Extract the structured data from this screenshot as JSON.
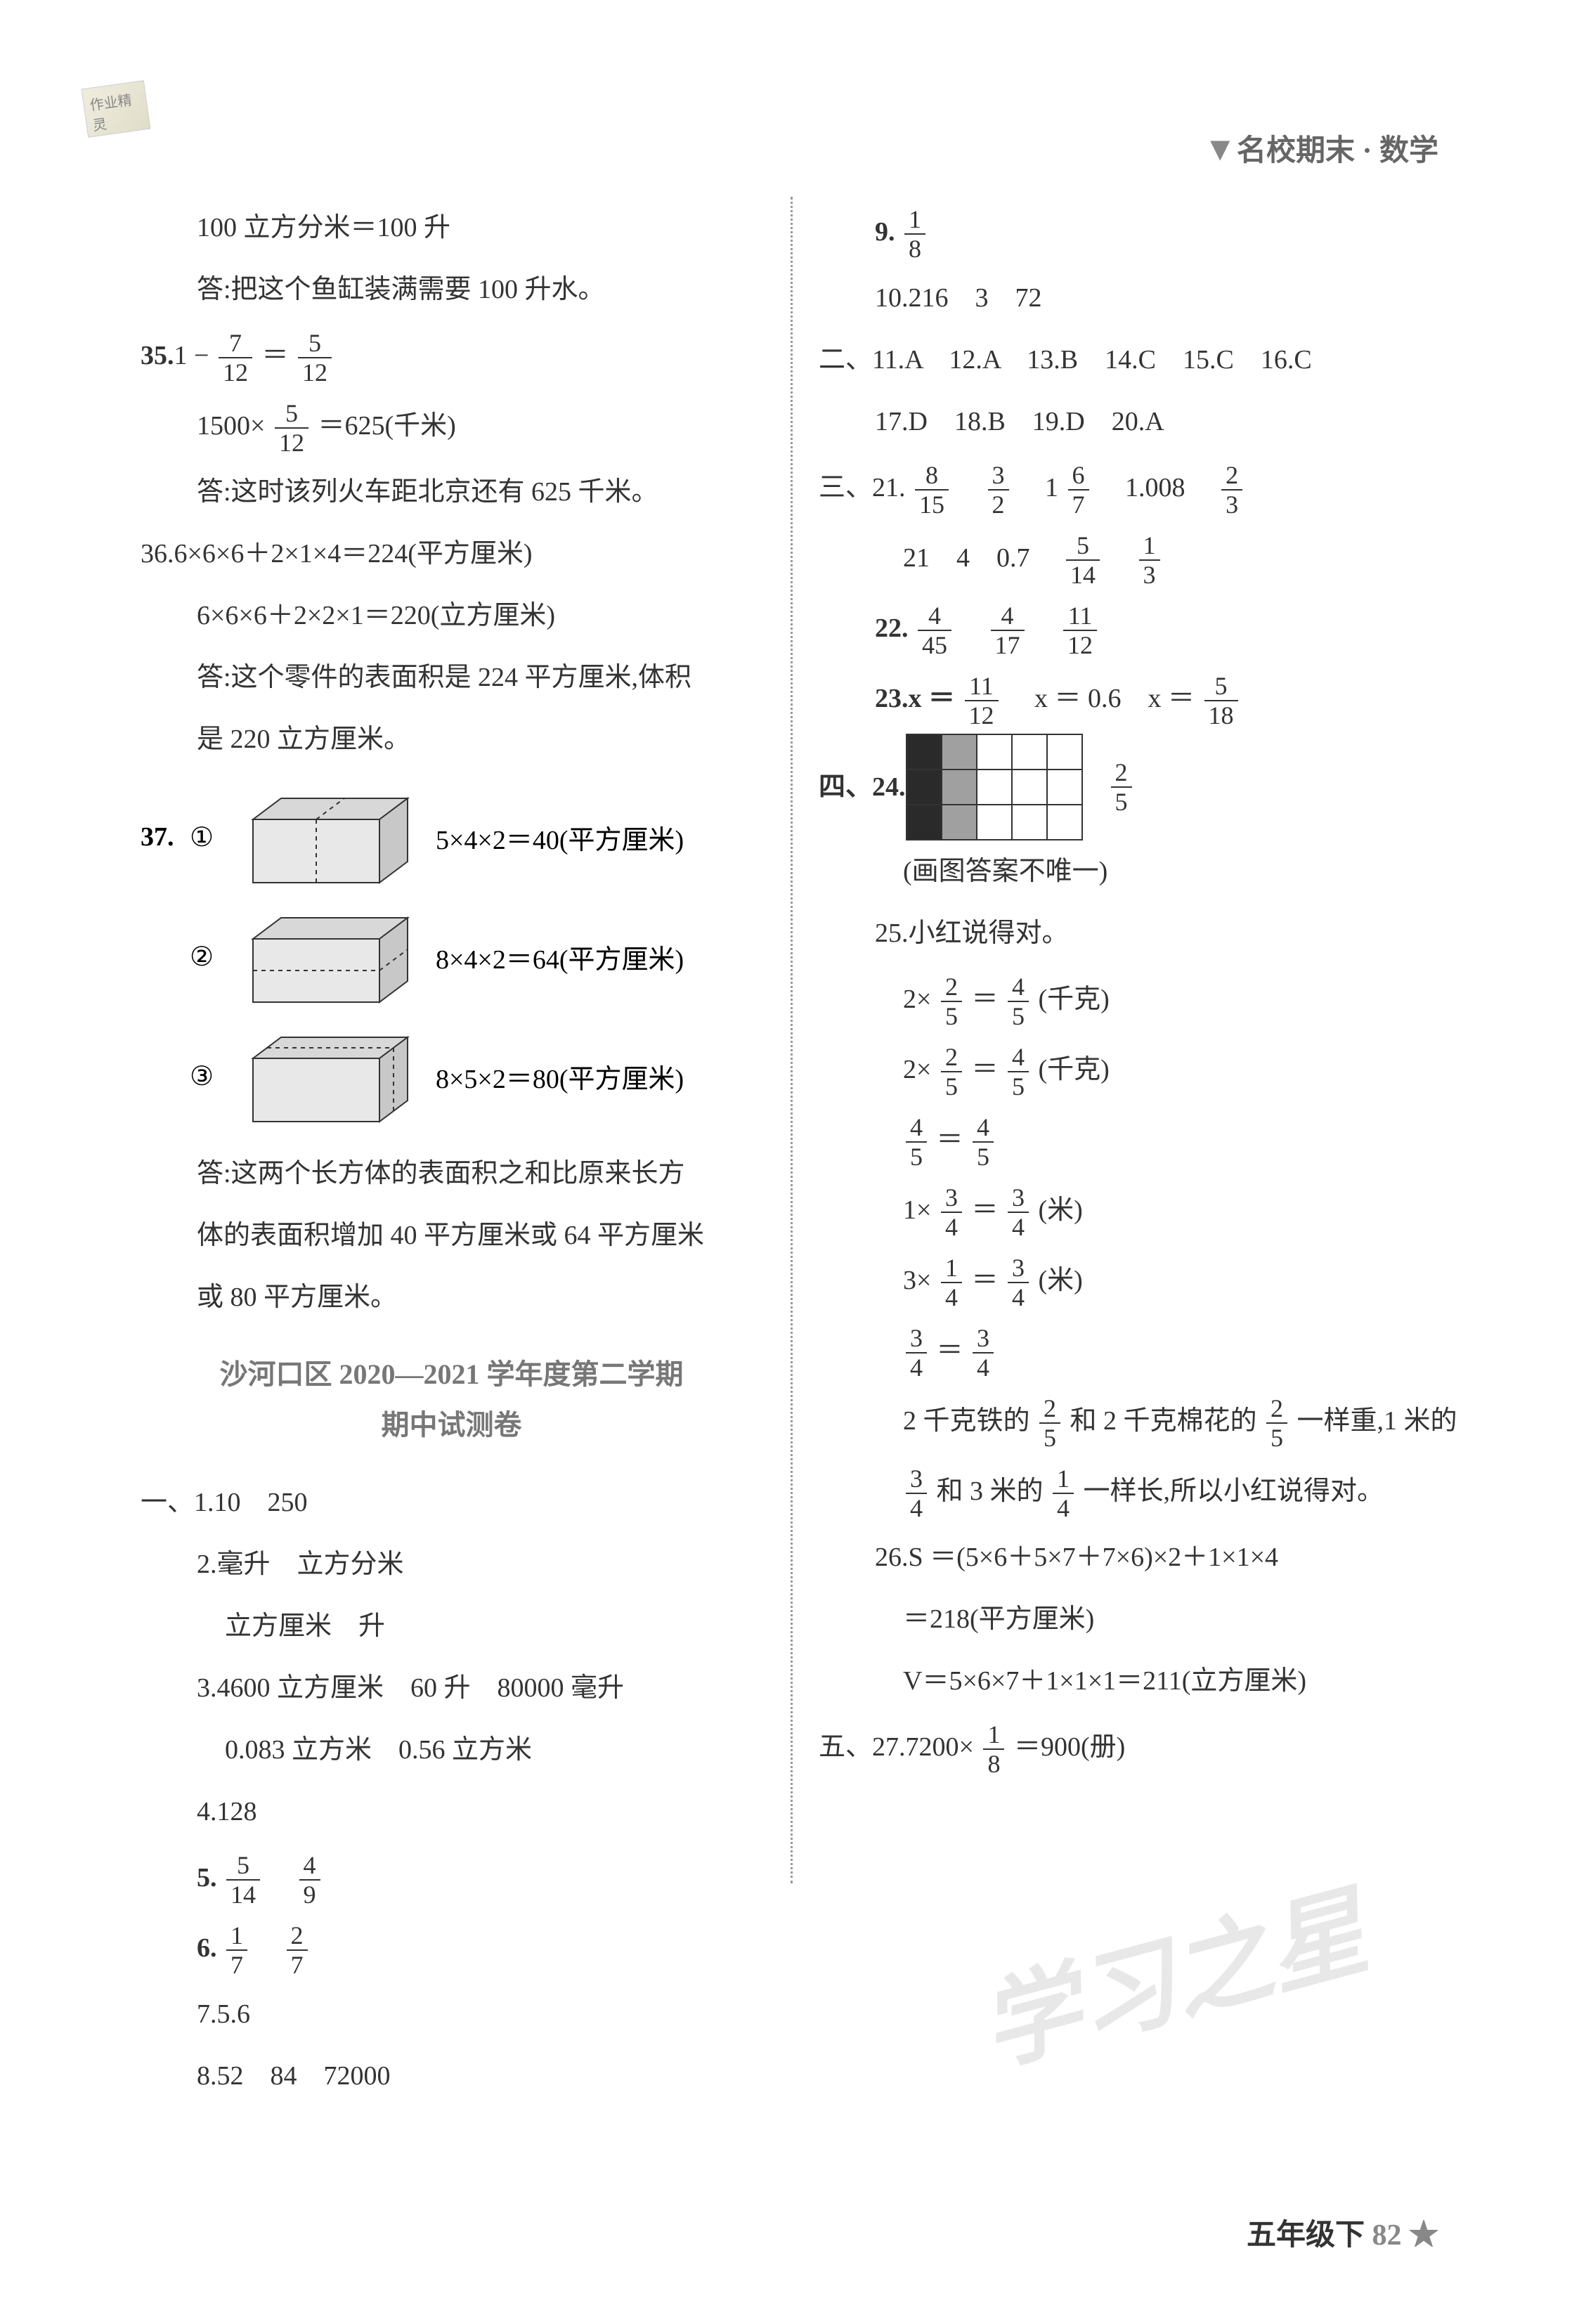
{
  "header": {
    "brand_text": "名校期末 · 数学",
    "corner_tag": "作业精灵"
  },
  "left": {
    "l1": "100 立方分米＝100 升",
    "l2": "答:把这个鱼缸装满需要 100 升水。",
    "q35_prefix": "35.",
    "q35_main": "1 −",
    "q35_f1n": "7",
    "q35_f1d": "12",
    "q35_eq": " ＝ ",
    "q35_f2n": "5",
    "q35_f2d": "12",
    "q35_r2a": "1500×",
    "q35_r2_fn": "5",
    "q35_r2_fd": "12",
    "q35_r2b": "＝625(千米)",
    "q35_ans": "答:这时该列火车距北京还有 625 千米。",
    "q36_l1": "36.6×6×6＋2×1×4＝224(平方厘米)",
    "q36_l2": "6×6×6＋2×2×1＝220(立方厘米)",
    "q36_l3": "答:这个零件的表面积是 224 平方厘米,体积",
    "q36_l4": "是 220 立方厘米。",
    "q37_num": "37.",
    "q37_c1_label": "①",
    "q37_c1_text": "5×4×2＝40(平方厘米)",
    "q37_c2_label": "②",
    "q37_c2_text": "8×4×2＝64(平方厘米)",
    "q37_c3_label": "③",
    "q37_c3_text": "8×5×2＝80(平方厘米)",
    "q37_ans1": "答:这两个长方体的表面积之和比原来长方",
    "q37_ans2": "体的表面积增加 40 平方厘米或 64 平方厘米",
    "q37_ans3": "或 80 平方厘米。",
    "section_title_l1": "沙河口区 2020—2021 学年度第二学期",
    "section_title_l2": "期中试测卷",
    "s1_q1": "一、1.10　250",
    "s1_q2a": "2.毫升　立方分米",
    "s1_q2b": "立方厘米　升",
    "s1_q3a": "3.4600 立方厘米　60 升　80000 毫升",
    "s1_q3b": "0.083 立方米　0.56 立方米",
    "s1_q4": "4.128",
    "s1_q5": "5.",
    "s1_q5_f1n": "5",
    "s1_q5_f1d": "14",
    "s1_q5_f2n": "4",
    "s1_q5_f2d": "9",
    "s1_q6": "6.",
    "s1_q6_f1n": "1",
    "s1_q6_f1d": "7",
    "s1_q6_f2n": "2",
    "s1_q6_f2d": "7",
    "s1_q7": "7.5.6",
    "s1_q8": "8.52　84　72000"
  },
  "right": {
    "q9": "9.",
    "q9_fn": "1",
    "q9_fd": "8",
    "q10": "10.216　3　72",
    "s2": "二、11.A　12.A　13.B　14.C　15.C　16.C",
    "s2b": "17.D　18.B　19.D　20.A",
    "s3_21": "三、21.",
    "s3_21_f1n": "8",
    "s3_21_f1d": "15",
    "s3_21_f2n": "3",
    "s3_21_f2d": "2",
    "s3_21_mix": "　1 ",
    "s3_21_f3n": "6",
    "s3_21_f3d": "7",
    "s3_21_c": "　1.008　",
    "s3_21_f4n": "2",
    "s3_21_f4d": "3",
    "s3_21b_a": "21　4　0.7　",
    "s3_21b_f1n": "5",
    "s3_21b_f1d": "14",
    "s3_21b_f2n": "1",
    "s3_21b_f2d": "3",
    "q22": "22.",
    "q22_f1n": "4",
    "q22_f1d": "45",
    "q22_f2n": "4",
    "q22_f2d": "17",
    "q22_f3n": "11",
    "q22_f3d": "12",
    "q23a": "23.x ＝ ",
    "q23_f1n": "11",
    "q23_f1d": "12",
    "q23b": "　x ＝ 0.6　x ＝ ",
    "q23_f2n": "5",
    "q23_f2d": "18",
    "q24_label": "四、24.",
    "q24_fn": "2",
    "q24_fd": "5",
    "q24_note": "(画图答案不唯一)",
    "grid": {
      "rows": 3,
      "cols": 5,
      "pattern": [
        [
          "black",
          "gray",
          "white",
          "white",
          "white"
        ],
        [
          "black",
          "gray",
          "white",
          "white",
          "white"
        ],
        [
          "black",
          "gray",
          "white",
          "white",
          "white"
        ]
      ]
    },
    "q25_l1": "25.小红说得对。",
    "q25_e1a": "2×",
    "q25_e1_f1n": "2",
    "q25_e1_f1d": "5",
    "q25_e1b": " ＝ ",
    "q25_e1_f2n": "4",
    "q25_e1_f2d": "5",
    "q25_e1c": "(千克)",
    "q25_e3_f1n": "4",
    "q25_e3_f1d": "5",
    "q25_e3_eq": " ＝ ",
    "q25_e3_f2n": "4",
    "q25_e3_f2d": "5",
    "q25_e4a": "1×",
    "q25_e4_f1n": "3",
    "q25_e4_f1d": "4",
    "q25_e4b": " ＝ ",
    "q25_e4_f2n": "3",
    "q25_e4_f2d": "4",
    "q25_e4c": "(米)",
    "q25_e5a": "3×",
    "q25_e5_f1n": "1",
    "q25_e5_f1d": "4",
    "q25_e5b": " ＝ ",
    "q25_e5_f2n": "3",
    "q25_e5_f2d": "4",
    "q25_e5c": "(米)",
    "q25_e6_f1n": "3",
    "q25_e6_f1d": "4",
    "q25_e6_eq": " ＝ ",
    "q25_e6_f2n": "3",
    "q25_e6_f2d": "4",
    "q25_t1a": "2 千克铁的",
    "q25_t1_f1n": "2",
    "q25_t1_f1d": "5",
    "q25_t1b": "和 2 千克棉花的",
    "q25_t1_f2n": "2",
    "q25_t1_f2d": "5",
    "q25_t1c": "一样重,1 米的",
    "q25_t2_f1n": "3",
    "q25_t2_f1d": "4",
    "q25_t2a": "和 3 米的",
    "q25_t2_f2n": "1",
    "q25_t2_f2d": "4",
    "q25_t2b": "一样长,所以小红说得对。",
    "q26_l1": "26.S ＝(5×6＋5×7＋7×6)×2＋1×1×4",
    "q26_l2": "＝218(平方厘米)",
    "q26_l3": "V＝5×6×7＋1×1×1＝211(立方厘米)",
    "q27a": "五、27.7200×",
    "q27_fn": "1",
    "q27_fd": "8",
    "q27b": "＝900(册)"
  },
  "footer": {
    "grade": "五年级下",
    "page": "82",
    "star": "★"
  },
  "watermark": "学习之星",
  "cuboid_style": {
    "fill": "#e8e8e8",
    "stroke": "#333",
    "stroke_width": 2
  }
}
